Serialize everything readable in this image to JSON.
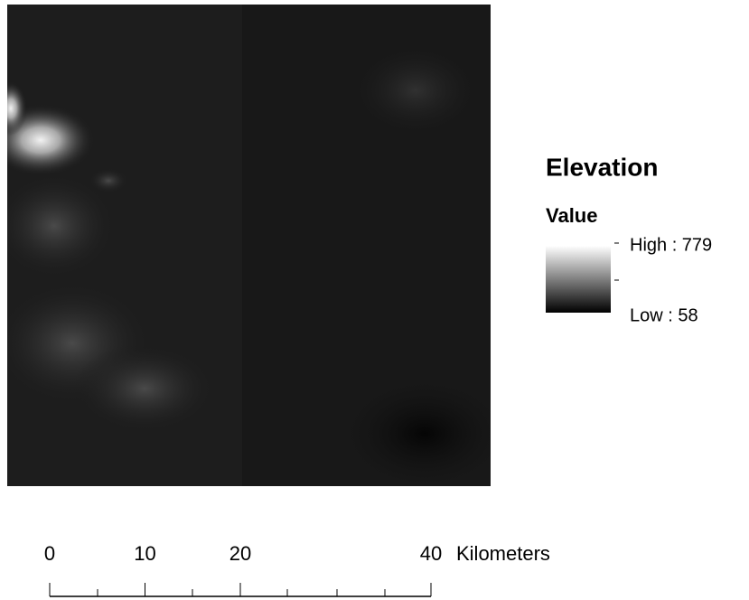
{
  "legend": {
    "title": "Elevation",
    "subtitle": "Value",
    "high_label": "High : 779",
    "low_label": "Low : 58"
  },
  "scale_bar": {
    "ticks": [
      0,
      10,
      20,
      40
    ],
    "unit": "Kilometers"
  }
}
